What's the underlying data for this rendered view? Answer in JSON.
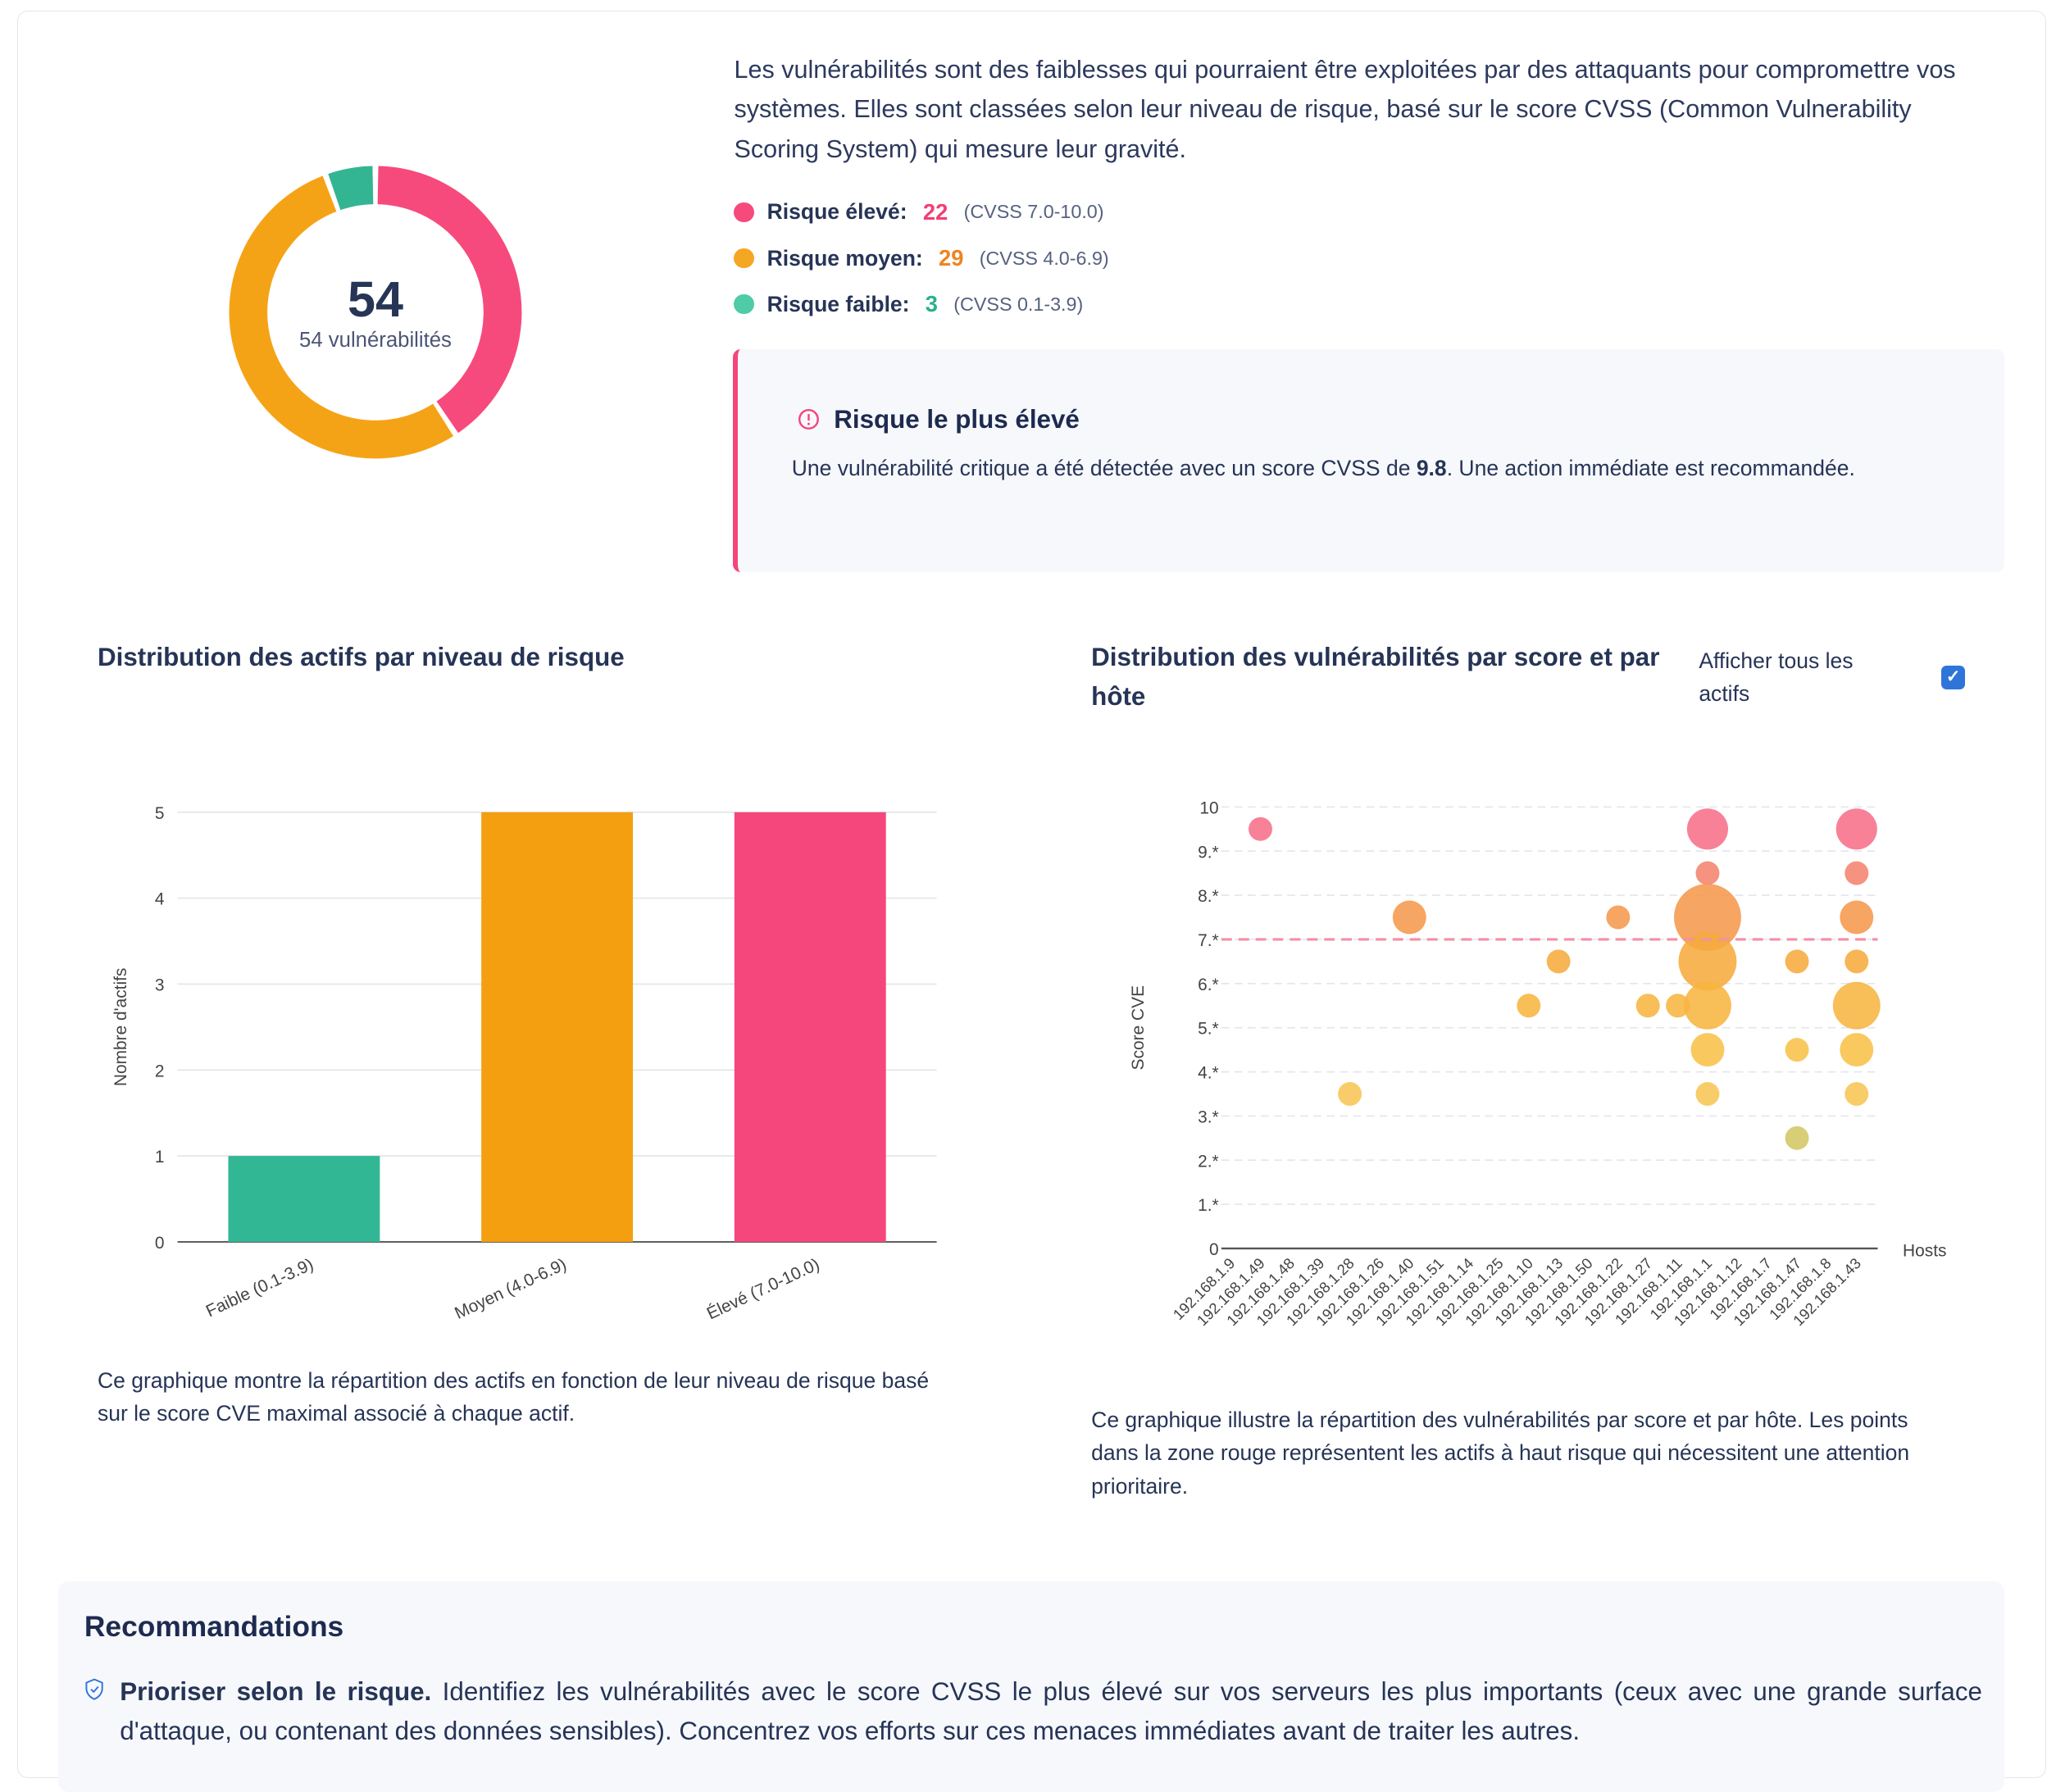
{
  "summary": {
    "total": "54",
    "total_label": "54 vulnérabilités",
    "description": "Les vulnérabilités sont des faiblesses qui pourraient être exploitées par des attaquants pour compromettre vos systèmes. Elles sont classées selon leur niveau de risque, basé sur le score CVSS (Common Vulnerability Scoring System) qui mesure leur gravité.",
    "legend": [
      {
        "label": "Risque élevé:",
        "count": "22",
        "range": "(CVSS 7.0-10.0)",
        "color": "#f64a7d",
        "count_color": "#f23f73"
      },
      {
        "label": "Risque moyen:",
        "count": "29",
        "range": "(CVSS 4.0-6.9)",
        "color": "#f5a623",
        "count_color": "#ef8420"
      },
      {
        "label": "Risque faible:",
        "count": "3",
        "range": "(CVSS 0.1-3.9)",
        "color": "#4fcba7",
        "count_color": "#2bb08c"
      }
    ],
    "donut": [
      {
        "name": "Risque élevé",
        "value": 22,
        "color": "#f64a7d"
      },
      {
        "name": "Risque moyen",
        "value": 29,
        "color": "#f5a316"
      },
      {
        "name": "Risque faible",
        "value": 3,
        "color": "#33b594"
      }
    ]
  },
  "alert": {
    "icon": "alert-circle-icon",
    "title": "Risque le plus élevé",
    "text_before": "Une vulnérabilité critique a été détectée avec un score CVSS de ",
    "score": "9.8",
    "text_after": ". Une action immédiate est recommandée.",
    "accent": "#f5457a"
  },
  "bar_section": {
    "title": "Distribution des actifs par niveau de risque",
    "caption": "Ce graphique montre la répartition des actifs en fonction de leur niveau de risque basé sur le score CVE maximal associé à chaque actif."
  },
  "scatter_section": {
    "title": "Distribution des vulnérabilités par score et par hôte",
    "checkbox_label": "Afficher tous les actifs",
    "checkbox_checked": true,
    "caption": "Ce graphique illustre la répartition des vulnérabilités par score et par hôte. Les points dans la zone rouge représentent les actifs à haut risque qui nécessitent une attention prioritaire."
  },
  "chart_data": [
    {
      "type": "bar",
      "categories": [
        "Faible (0.1-3.9)",
        "Moyen (4.0-6.9)",
        "Élevé (7.0-10.0)"
      ],
      "values": [
        1,
        5,
        5
      ],
      "colors": [
        "#32b795",
        "#f39f10",
        "#f5477c"
      ],
      "ylabel": "Nombre d'actifs",
      "ylim": [
        0,
        5
      ],
      "yticks": [
        "0",
        "1",
        "2",
        "3",
        "4",
        "5"
      ],
      "grid": true
    },
    {
      "type": "scatter",
      "xlabel": "Hosts",
      "ylabel": "Score CVE",
      "ylim": [
        0,
        10
      ],
      "yticks": [
        "0",
        "1.*",
        "2.*",
        "3.*",
        "4.*",
        "5.*",
        "6.*",
        "7.*",
        "8.*",
        "9.*",
        "10"
      ],
      "threshold": 7,
      "threshold_color": "#f48fa5",
      "grid": true,
      "categories": [
        "192.168.1.9",
        "192.168.1.49",
        "192.168.1.48",
        "192.168.1.39",
        "192.168.1.28",
        "192.168.1.26",
        "192.168.1.40",
        "192.168.1.51",
        "192.168.1.14",
        "192.168.1.25",
        "192.168.1.10",
        "192.168.1.13",
        "192.168.1.50",
        "192.168.1.22",
        "192.168.1.27",
        "192.168.1.11",
        "192.168.1.1",
        "192.168.1.12",
        "192.168.1.7",
        "192.168.1.47",
        "192.168.1.8",
        "192.168.1.43"
      ],
      "points": [
        {
          "host": "192.168.1.49",
          "score": 9.5,
          "count": 1
        },
        {
          "host": "192.168.1.28",
          "score": 3.5,
          "count": 1
        },
        {
          "host": "192.168.1.40",
          "score": 7.5,
          "count": 2
        },
        {
          "host": "192.168.1.10",
          "score": 5.5,
          "count": 1
        },
        {
          "host": "192.168.1.13",
          "score": 6.5,
          "count": 1
        },
        {
          "host": "192.168.1.22",
          "score": 7.5,
          "count": 1
        },
        {
          "host": "192.168.1.27",
          "score": 5.5,
          "count": 1
        },
        {
          "host": "192.168.1.11",
          "score": 5.5,
          "count": 1
        },
        {
          "host": "192.168.1.1",
          "score": 9.5,
          "count": 3
        },
        {
          "host": "192.168.1.1",
          "score": 8.5,
          "count": 1
        },
        {
          "host": "192.168.1.1",
          "score": 7.5,
          "count": 8
        },
        {
          "host": "192.168.1.1",
          "score": 6.5,
          "count": 6
        },
        {
          "host": "192.168.1.1",
          "score": 5.5,
          "count": 4
        },
        {
          "host": "192.168.1.1",
          "score": 4.5,
          "count": 2
        },
        {
          "host": "192.168.1.1",
          "score": 3.5,
          "count": 1
        },
        {
          "host": "192.168.1.47",
          "score": 6.5,
          "count": 1
        },
        {
          "host": "192.168.1.47",
          "score": 4.5,
          "count": 1
        },
        {
          "host": "192.168.1.47",
          "score": 2.5,
          "count": 1
        },
        {
          "host": "192.168.1.43",
          "score": 9.5,
          "count": 3
        },
        {
          "host": "192.168.1.43",
          "score": 8.5,
          "count": 1
        },
        {
          "host": "192.168.1.43",
          "score": 7.5,
          "count": 2
        },
        {
          "host": "192.168.1.43",
          "score": 6.5,
          "count": 1
        },
        {
          "host": "192.168.1.43",
          "score": 5.5,
          "count": 4
        },
        {
          "host": "192.168.1.43",
          "score": 4.5,
          "count": 2
        },
        {
          "host": "192.168.1.43",
          "score": 3.5,
          "count": 1
        }
      ],
      "score_colors": {
        "9.5": "#f7708a",
        "8.5": "#f5836e",
        "7.5": "#f5994d",
        "6.5": "#f6ab3e",
        "5.5": "#f7b540",
        "4.5": "#f8c24a",
        "3.5": "#f8c555",
        "2.5": "#d1c764"
      }
    }
  ],
  "recommendations": {
    "title": "Recommandations",
    "items": [
      {
        "icon": "shield-check-icon",
        "bold": "Prioriser selon le risque.",
        "text": " Identifiez les vulnérabilités avec le score CVSS le plus élevé sur vos serveurs les plus importants (ceux avec une grande surface d'attaque, ou contenant des données sensibles). Concentrez vos efforts sur ces menaces immédiates avant de traiter les autres."
      }
    ]
  }
}
